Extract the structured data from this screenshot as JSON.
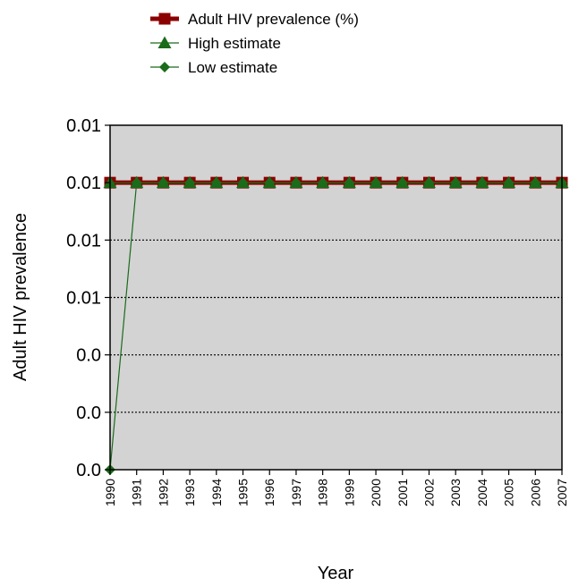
{
  "chart_data": {
    "type": "line",
    "xlabel": "Year",
    "ylabel": "Adult HIV prevalence",
    "categories": [
      "1990",
      "1991",
      "1992",
      "1993",
      "1994",
      "1995",
      "1996",
      "1997",
      "1998",
      "1999",
      "2000",
      "2001",
      "2002",
      "2003",
      "2004",
      "2005",
      "2006",
      "2007"
    ],
    "y_tick_labels": [
      "0.0",
      "0.0",
      "0.0",
      "0.01",
      "0.01",
      "0.01",
      "0.01"
    ],
    "ylim": [
      0,
      0.012
    ],
    "y_ticks": [
      0,
      0.002,
      0.004,
      0.006,
      0.008,
      0.01,
      0.012
    ],
    "grid": "horizontal dotted",
    "legend_position": "top",
    "plot_background": "#d3d3d3",
    "series": [
      {
        "name": "Adult HIV prevalence (%)",
        "color": "#8b0000",
        "marker": "square",
        "values": [
          0.01,
          0.01,
          0.01,
          0.01,
          0.01,
          0.01,
          0.01,
          0.01,
          0.01,
          0.01,
          0.01,
          0.01,
          0.01,
          0.01,
          0.01,
          0.01,
          0.01,
          0.01
        ]
      },
      {
        "name": "High estimate",
        "color": "#1a6b1a",
        "marker": "triangle",
        "values": [
          0.01,
          0.01,
          0.01,
          0.01,
          0.01,
          0.01,
          0.01,
          0.01,
          0.01,
          0.01,
          0.01,
          0.01,
          0.01,
          0.01,
          0.01,
          0.01,
          0.01,
          0.01
        ]
      },
      {
        "name": "Low estimate",
        "color": "#1a6b1a",
        "marker": "diamond",
        "values": [
          0,
          0.01,
          0.01,
          0.01,
          0.01,
          0.01,
          0.01,
          0.01,
          0.01,
          0.01,
          0.01,
          0.01,
          0.01,
          0.01,
          0.01,
          0.01,
          0.01,
          0.01
        ]
      }
    ]
  }
}
